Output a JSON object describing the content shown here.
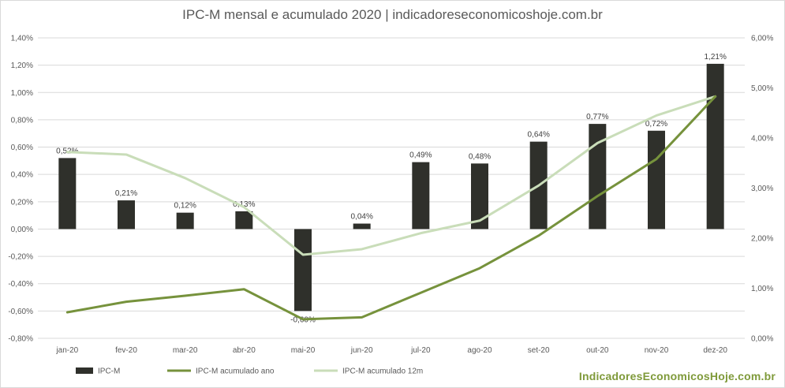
{
  "chart_data": {
    "type": "bar",
    "title": "IPC-M mensal e acumulado 2020 | indicadoreseconomicoshoje.com.br",
    "categories": [
      "jan-20",
      "fev-20",
      "mar-20",
      "abr-20",
      "mai-20",
      "jun-20",
      "jul-20",
      "ago-20",
      "set-20",
      "out-20",
      "nov-20",
      "dez-20"
    ],
    "y_left": {
      "min": -0.8,
      "max": 1.4,
      "step": 0.2,
      "tick_labels": [
        "-0,80%",
        "-0,60%",
        "-0,40%",
        "-0,20%",
        "0,00%",
        "0,20%",
        "0,40%",
        "0,60%",
        "0,80%",
        "1,00%",
        "1,20%",
        "1,40%"
      ]
    },
    "y_right": {
      "min": 0,
      "max": 6,
      "step": 1,
      "tick_labels": [
        "0,00%",
        "1,00%",
        "2,00%",
        "3,00%",
        "4,00%",
        "5,00%",
        "6,00%"
      ]
    },
    "grid": true,
    "legend_position": "bottom-left",
    "series": [
      {
        "name": "IPC-M",
        "type": "bar",
        "axis": "left",
        "color": "#2f302b",
        "values": [
          0.52,
          0.21,
          0.12,
          0.13,
          -0.6,
          0.04,
          0.49,
          0.48,
          0.64,
          0.77,
          0.72,
          1.21
        ],
        "labels": [
          "0,52%",
          "0,21%",
          "0,12%",
          "0,13%",
          "-0,60%",
          "0,04%",
          "0,49%",
          "0,48%",
          "0,64%",
          "0,77%",
          "0,72%",
          "1,21%"
        ]
      },
      {
        "name": "IPC-M acumulado ano",
        "type": "line",
        "axis": "right",
        "color": "#76923c",
        "values": [
          0.52,
          0.73,
          0.85,
          0.98,
          0.38,
          0.42,
          0.91,
          1.4,
          2.05,
          2.84,
          3.58,
          4.83
        ]
      },
      {
        "name": "IPC-M acumulado 12m",
        "type": "line",
        "axis": "right",
        "color": "#c9ddb9",
        "values": [
          3.72,
          3.67,
          3.2,
          2.62,
          1.67,
          1.78,
          2.1,
          2.35,
          3.05,
          3.9,
          4.45,
          4.83
        ]
      }
    ]
  },
  "brand": "IndicadoresEconomicosHoje.com.br"
}
